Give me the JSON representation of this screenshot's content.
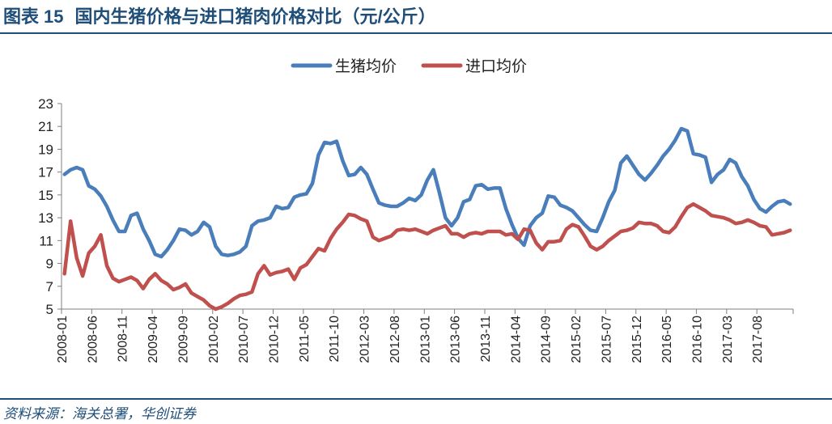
{
  "header": {
    "label": "图表",
    "number": "15",
    "text": "国内生猪价格与进口猪肉价格对比（元/公斤）"
  },
  "source": "资料来源：海关总署，华创证券",
  "colors": {
    "hog": "#4a7ebb",
    "import": "#c0504d",
    "title": "#1f4e79"
  },
  "chart_data": {
    "type": "line",
    "title": "国内生猪价格与进口猪肉价格对比（元/公斤）",
    "xlabel": "",
    "ylabel": "元/公斤",
    "ylim": [
      5,
      23
    ],
    "yticks": [
      5,
      7,
      9,
      11,
      13,
      15,
      17,
      19,
      21,
      23
    ],
    "grid": false,
    "legend": "top-center",
    "x_tick_labels": [
      "2008-01",
      "2008-06",
      "2008-11",
      "2009-04",
      "2009-09",
      "2010-02",
      "2010-07",
      "2010-12",
      "2011-05",
      "2011-10",
      "2012-03",
      "2012-08",
      "2013-01",
      "2013-06",
      "2013-11",
      "2014-04",
      "2014-09",
      "2015-02",
      "2015-07",
      "2015-12",
      "2016-05",
      "2016-10",
      "2017-03",
      "2017-08"
    ],
    "x_start": "2008-01",
    "x_end": "2017-12",
    "series": [
      {
        "name": "生猪均价",
        "color": "#4a7ebb",
        "values": [
          16.8,
          17.2,
          17.4,
          17.2,
          15.8,
          15.5,
          14.9,
          14.0,
          12.8,
          11.8,
          11.8,
          13.2,
          13.4,
          12.0,
          11.0,
          9.8,
          9.6,
          10.2,
          11.0,
          12.0,
          11.9,
          11.5,
          11.8,
          12.6,
          12.2,
          10.5,
          9.8,
          9.7,
          9.8,
          10.0,
          10.5,
          12.3,
          12.7,
          12.8,
          13.0,
          14.0,
          13.8,
          13.9,
          14.8,
          15.0,
          15.1,
          16.0,
          18.5,
          19.6,
          19.5,
          19.7,
          18.0,
          16.7,
          16.8,
          17.4,
          16.8,
          15.5,
          14.3,
          14.1,
          14.0,
          14.0,
          14.3,
          14.7,
          14.5,
          15.0,
          16.3,
          17.2,
          15.2,
          13.0,
          12.3,
          13.0,
          14.4,
          14.6,
          15.8,
          15.9,
          15.5,
          15.6,
          15.6,
          13.8,
          12.4,
          11.2,
          10.6,
          12.3,
          13.0,
          13.4,
          14.9,
          14.8,
          14.1,
          13.9,
          13.6,
          13.0,
          12.4,
          11.9,
          11.8,
          13.0,
          14.4,
          15.4,
          17.8,
          18.4,
          17.6,
          16.8,
          16.3,
          16.9,
          17.6,
          18.4,
          19.0,
          19.8,
          20.8,
          20.6,
          18.6,
          18.5,
          18.3,
          16.1,
          16.8,
          17.2,
          18.1,
          17.8,
          16.6,
          15.8,
          14.6,
          13.8,
          13.5,
          14.0,
          14.4,
          14.5,
          14.2
        ]
      },
      {
        "name": "进口均价",
        "color": "#c0504d",
        "values": [
          8.1,
          12.7,
          9.5,
          7.9,
          9.9,
          10.5,
          11.5,
          8.8,
          7.7,
          7.4,
          7.6,
          7.8,
          7.5,
          6.8,
          7.6,
          8.1,
          7.5,
          7.2,
          6.7,
          6.9,
          7.2,
          6.4,
          6.1,
          5.8,
          5.3,
          5.0,
          5.2,
          5.5,
          5.9,
          6.2,
          6.3,
          6.5,
          8.1,
          8.8,
          8.0,
          8.2,
          8.3,
          8.5,
          7.6,
          8.6,
          8.9,
          9.6,
          10.3,
          10.1,
          11.2,
          12.0,
          12.6,
          13.3,
          13.2,
          12.9,
          12.7,
          11.3,
          11.0,
          11.2,
          11.4,
          11.9,
          12.0,
          11.9,
          12.0,
          11.8,
          11.6,
          11.9,
          12.1,
          12.3,
          11.6,
          11.6,
          11.3,
          11.6,
          11.7,
          11.6,
          11.8,
          11.8,
          11.8,
          11.5,
          11.6,
          11.1,
          12.0,
          11.9,
          10.8,
          10.2,
          10.9,
          10.9,
          11.0,
          12.0,
          12.4,
          12.2,
          11.4,
          10.5,
          10.2,
          10.5,
          11.0,
          11.4,
          11.8,
          11.9,
          12.1,
          12.6,
          12.5,
          12.5,
          12.3,
          11.8,
          11.7,
          12.2,
          13.1,
          13.9,
          14.2,
          13.9,
          13.6,
          13.2,
          13.1,
          13.0,
          12.8,
          12.5,
          12.6,
          12.8,
          12.6,
          12.3,
          12.2,
          11.5,
          11.6,
          11.7,
          11.9
        ]
      }
    ]
  }
}
